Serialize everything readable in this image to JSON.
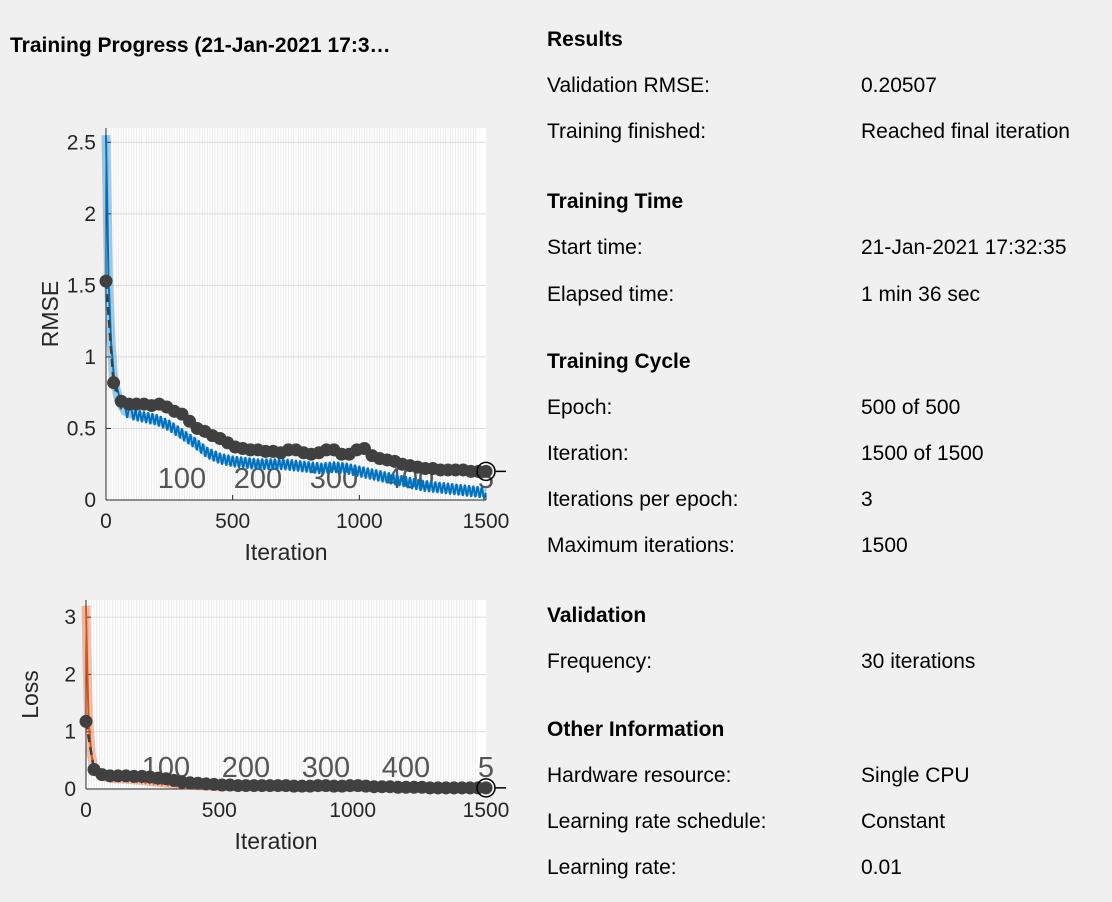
{
  "window": {
    "title": "Training Progress (21-Jan-2021 17:3…"
  },
  "colors": {
    "background": "#f0f0f0",
    "training_rmse": "#0072bd",
    "training_loss": "#d95319",
    "validation_marker": "#404040",
    "grid": "#dcdcdc"
  },
  "chart_data": [
    {
      "type": "line",
      "ylabel": "RMSE",
      "xlabel": "Iteration",
      "xlim": [
        0,
        1500
      ],
      "ylim": [
        0,
        2.6
      ],
      "x_ticks": [
        "0",
        "500",
        "1000",
        "1500"
      ],
      "y_ticks": [
        "0",
        "0.5",
        "1",
        "1.5",
        "2",
        "2.5"
      ],
      "epoch_labels": [
        "100",
        "200",
        "300",
        "400",
        "5"
      ],
      "epoch_label_iterations": [
        300,
        600,
        900,
        1200,
        1500
      ],
      "grid": true,
      "series": [
        {
          "style": "noisy-line",
          "x": [
            0,
            10,
            20,
            30,
            50,
            75,
            100,
            150,
            200,
            250,
            300,
            350,
            400,
            450,
            500,
            550,
            600,
            650,
            700,
            750,
            800,
            850,
            900,
            950,
            1000,
            1050,
            1100,
            1150,
            1200,
            1250,
            1300,
            1350,
            1400,
            1450,
            1500
          ],
          "y": [
            2.55,
            1.55,
            1.1,
            0.85,
            0.7,
            0.62,
            0.6,
            0.58,
            0.56,
            0.52,
            0.46,
            0.4,
            0.33,
            0.29,
            0.27,
            0.26,
            0.25,
            0.25,
            0.25,
            0.24,
            0.23,
            0.22,
            0.23,
            0.22,
            0.2,
            0.18,
            0.16,
            0.14,
            0.12,
            0.1,
            0.09,
            0.08,
            0.07,
            0.06,
            0.05
          ]
        },
        {
          "style": "dashed-markers",
          "x": [
            0,
            30,
            60,
            90,
            120,
            150,
            180,
            210,
            240,
            270,
            300,
            330,
            360,
            390,
            420,
            450,
            480,
            510,
            540,
            570,
            600,
            630,
            660,
            690,
            720,
            750,
            780,
            810,
            840,
            870,
            900,
            930,
            960,
            990,
            1020,
            1050,
            1080,
            1110,
            1140,
            1170,
            1200,
            1230,
            1260,
            1290,
            1320,
            1350,
            1380,
            1410,
            1440,
            1470,
            1500
          ],
          "y": [
            1.53,
            0.82,
            0.69,
            0.67,
            0.67,
            0.67,
            0.66,
            0.67,
            0.65,
            0.62,
            0.6,
            0.55,
            0.5,
            0.48,
            0.45,
            0.43,
            0.4,
            0.37,
            0.36,
            0.35,
            0.35,
            0.34,
            0.34,
            0.33,
            0.35,
            0.35,
            0.33,
            0.32,
            0.33,
            0.35,
            0.35,
            0.32,
            0.32,
            0.35,
            0.36,
            0.31,
            0.29,
            0.28,
            0.27,
            0.25,
            0.24,
            0.23,
            0.22,
            0.22,
            0.21,
            0.21,
            0.21,
            0.21,
            0.2,
            0.2,
            0.2
          ]
        }
      ]
    },
    {
      "type": "line",
      "ylabel": "Loss",
      "xlabel": "Iteration",
      "xlim": [
        0,
        1500
      ],
      "ylim": [
        0,
        3.3
      ],
      "x_ticks": [
        "0",
        "500",
        "1000",
        "1500"
      ],
      "y_ticks": [
        "0",
        "1",
        "2",
        "3"
      ],
      "epoch_labels": [
        "100",
        "200",
        "300",
        "400",
        "5"
      ],
      "epoch_label_iterations": [
        300,
        600,
        900,
        1200,
        1500
      ],
      "grid": true,
      "series": [
        {
          "style": "noisy-line",
          "x": [
            0,
            5,
            10,
            20,
            30,
            50,
            75,
            100,
            150,
            200,
            300,
            400,
            500,
            600,
            800,
            1000,
            1200,
            1400,
            1500
          ],
          "y": [
            3.2,
            2.0,
            1.2,
            0.6,
            0.35,
            0.25,
            0.2,
            0.18,
            0.17,
            0.15,
            0.1,
            0.06,
            0.04,
            0.04,
            0.03,
            0.03,
            0.02,
            0.01,
            0.01
          ]
        },
        {
          "style": "dashed-markers",
          "x": [
            0,
            30,
            60,
            90,
            120,
            150,
            180,
            210,
            240,
            270,
            300,
            330,
            360,
            390,
            420,
            450,
            480,
            510,
            540,
            570,
            600,
            630,
            660,
            690,
            720,
            750,
            780,
            810,
            840,
            870,
            900,
            930,
            960,
            990,
            1020,
            1050,
            1080,
            1110,
            1140,
            1170,
            1200,
            1230,
            1260,
            1290,
            1320,
            1350,
            1380,
            1410,
            1440,
            1470,
            1500
          ],
          "y": [
            1.18,
            0.34,
            0.25,
            0.23,
            0.23,
            0.23,
            0.22,
            0.22,
            0.21,
            0.19,
            0.18,
            0.15,
            0.12,
            0.11,
            0.1,
            0.09,
            0.08,
            0.07,
            0.07,
            0.06,
            0.06,
            0.06,
            0.06,
            0.06,
            0.06,
            0.06,
            0.05,
            0.05,
            0.05,
            0.06,
            0.06,
            0.05,
            0.05,
            0.06,
            0.06,
            0.05,
            0.04,
            0.04,
            0.04,
            0.03,
            0.03,
            0.03,
            0.03,
            0.02,
            0.02,
            0.02,
            0.02,
            0.02,
            0.02,
            0.02,
            0.02
          ]
        }
      ]
    }
  ],
  "info": {
    "results": {
      "title": "Results",
      "rows": [
        {
          "label": "Validation RMSE:",
          "value": "0.20507"
        },
        {
          "label": "Training finished:",
          "value": "Reached final iteration"
        }
      ]
    },
    "training_time": {
      "title": "Training Time",
      "rows": [
        {
          "label": "Start time:",
          "value": "21-Jan-2021 17:32:35"
        },
        {
          "label": "Elapsed time:",
          "value": "1 min 36 sec"
        }
      ]
    },
    "training_cycle": {
      "title": "Training Cycle",
      "rows": [
        {
          "label": "Epoch:",
          "value": "500 of 500"
        },
        {
          "label": "Iteration:",
          "value": "1500 of 1500"
        },
        {
          "label": "Iterations per epoch:",
          "value": "3"
        },
        {
          "label": "Maximum iterations:",
          "value": "1500"
        }
      ]
    },
    "validation": {
      "title": "Validation",
      "rows": [
        {
          "label": "Frequency:",
          "value": "30 iterations"
        }
      ]
    },
    "other_information": {
      "title": "Other Information",
      "rows": [
        {
          "label": "Hardware resource:",
          "value": "Single CPU"
        },
        {
          "label": "Learning rate schedule:",
          "value": "Constant"
        },
        {
          "label": "Learning rate:",
          "value": "0.01"
        }
      ]
    }
  }
}
